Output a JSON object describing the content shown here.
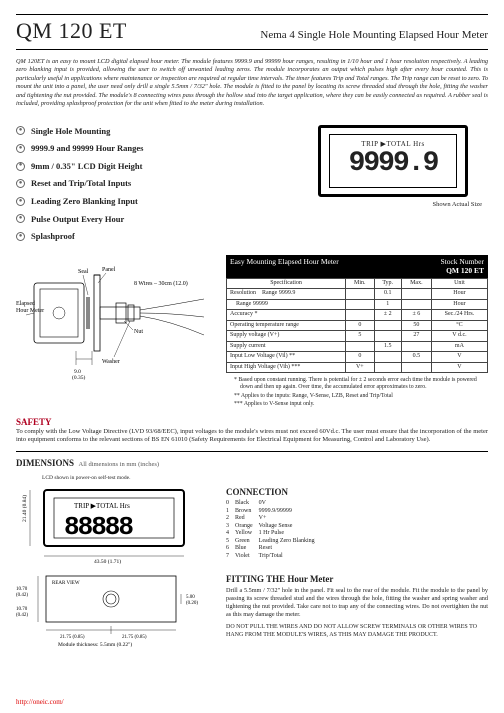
{
  "header": {
    "title": "QM 120 ET",
    "subtitle": "Nema 4 Single Hole Mounting Elapsed Hour Meter"
  },
  "intro": "QM 120ET is an easy to mount LCD digital elapsed hour meter. The module features 9999.9 and 99999 hour ranges, resulting in 1/10 hour and 1 hour resolution respectively. A leading zero blanking input is provided, allowing the user to switch off unwanted leading zeros. The module incorporates an output which pulses high after every hour counted. This is particularly useful in applications where maintenance or inspection are required at regular time intervals. The timer features Trip and Total ranges. The Trip range can be reset to zero. To mount the unit into a panel, the user need only drill a single 5.5mm / 7/32\" hole. The module is fitted to the panel by locating its screw threaded stud through the hole, fitting the washer and tightening the nut provided. The module's 8 connecting wires pass through the hollow stud into the target application, where they can be easily connected as required. A rubber seal is included, providing splashproof protection for the unit when fitted to the meter during installation.",
  "features": [
    "Single Hole Mounting",
    "9999.9 and 99999 Hour Ranges",
    "9mm / 0.35\" LCD Digit Height",
    "Reset and Trip/Total Inputs",
    "Leading Zero Blanking Input",
    "Pulse Output Every Hour",
    "Splashproof"
  ],
  "lcd": {
    "label": "TRIP ▶TOTAL Hrs",
    "digits": "9999.9",
    "actual": "Shown Actual Size"
  },
  "spec_header": {
    "left": "Easy Mounting Elapsed Hour Meter",
    "right_top": "Stock Number",
    "right_bot": "QM 120 ET"
  },
  "spec_cols": [
    "Specification",
    "Min.",
    "Typ.",
    "Max.",
    "Unit"
  ],
  "spec_rows": [
    [
      "Resolution",
      "Range 9999.9",
      "",
      "0.1",
      "",
      "Hour"
    ],
    [
      "",
      "Range 99999",
      "",
      "1",
      "",
      "Hour"
    ],
    [
      "Accuracy *",
      "",
      "",
      "± 2",
      "± 6",
      "Sec./24 Hrs."
    ],
    [
      "Operating temperature range",
      "",
      "0",
      "",
      "50",
      "°C"
    ],
    [
      "Supply voltage   (V+)",
      "",
      "5",
      "",
      "27",
      "V d.c."
    ],
    [
      "Supply current",
      "",
      "",
      "1.5",
      "",
      "mA"
    ],
    [
      "Input Low Voltage   (Vil) **",
      "",
      "0",
      "",
      "0.5",
      "V"
    ],
    [
      "Input High Voltage   (Vih) ***",
      "",
      "V+",
      "",
      "",
      "V"
    ]
  ],
  "notes": [
    "*   Based upon constant running. There is potential for ± 2 seconds error each time the module is powered down and then up again. Over time, the accumulated error approximates to zero.",
    "**  Applies to the inputs: Range, V-Sense, LZB, Reset and Trip/Total",
    "*** Applies to V-Sense input only."
  ],
  "safety": {
    "h": "SAFETY",
    "p": "To comply with the Low Voltage Directive (LVD 93/68/EEC), input voltages to the module's wires must not exceed 60Vd.c. The user must ensure that the incorporation of the meter into equipment conforms to the relevant sections of BS EN 61010 (Safety Requirements for Electrical Equipment for Measuring, Control and Laboratory Use)."
  },
  "dims": {
    "h": "DIMENSIONS",
    "note": "All dimensions in mm (inches)",
    "lcd_note": "LCD shown in power-on self-test mode.",
    "front_label": "TRIP ▶TOTAL Hrs",
    "front_digits": "88888",
    "h_dim": "21.40 (0.84)",
    "w_dim": "43.50 (1.71)",
    "rear_label": "REAR VIEW",
    "rear_h1": "10.70 (0.42)",
    "rear_h2": "10.70 (0.42)",
    "rear_t": "5.00 (0.20)",
    "rear_w1": "21.75 (0.85)",
    "rear_w2": "21.75 (0.85)",
    "thick": "Module thickness: 5.5mm (0.22\")"
  },
  "diagram": {
    "seal": "Seal",
    "panel": "Panel",
    "wires": "8 Wires – 30cm (12.0)",
    "elapsed": "Elapsed Hour Meter",
    "nut": "Nut",
    "washer": "Washer",
    "stud": "9.0 (0.35)"
  },
  "conn": {
    "h": "CONNECTION",
    "rows": [
      [
        "0",
        "Black",
        "0V"
      ],
      [
        "1",
        "Brown",
        "9999.9/99999"
      ],
      [
        "2",
        "Red",
        "V+"
      ],
      [
        "3",
        "Orange",
        "Voltage Sense"
      ],
      [
        "4",
        "Yellow",
        "1 Hr Pulse"
      ],
      [
        "5",
        "Green",
        "Leading Zero Blanking"
      ],
      [
        "6",
        "Blue",
        "Reset"
      ],
      [
        "7",
        "Violet",
        "Trip/Total"
      ]
    ]
  },
  "fitting": {
    "h": "FITTING THE Hour Meter",
    "p": "Drill a 5.5mm / 7/32\" hole in the panel. Fit seal to the rear of the module. Fit the module to the panel by passing its screw threaded stud and the wires through the hole, fitting the washer and spring washer and tightening the nut provided. Take care not to trap any of the connecting wires. Do not overtighten the nut as this may damage the meter.",
    "warn": "DO NOT PULL THE WIRES AND DO NOT ALLOW SCREW TERMINALS OR OTHER WIRES TO HANG FROM THE MODULE'S WIRES, AS THIS MAY DAMAGE THE PRODUCT."
  },
  "footer": "http://oneic.com/"
}
